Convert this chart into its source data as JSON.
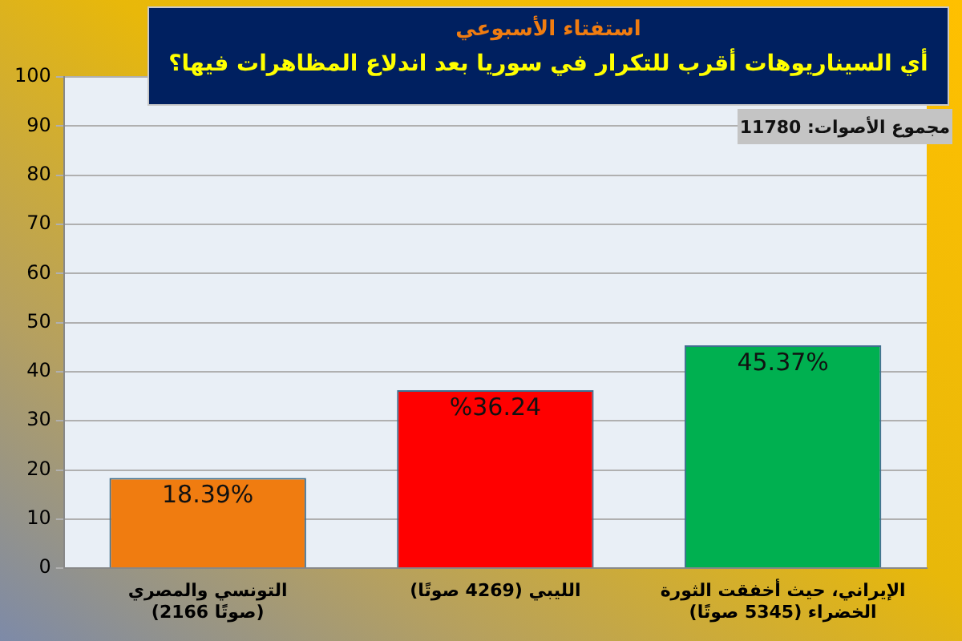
{
  "chart_data": {
    "type": "bar",
    "title": "استفتاء الأسبوعي",
    "subtitle": "أي السيناريوهات أقرب للتكرار في سوريا بعد اندلاع المظاهرات فيها؟",
    "annotations": [
      "مجموع الأصوات: 11780"
    ],
    "categories": [
      "التونسي والمصري (2166 صوتًا)",
      "الليبي (4269 صوتًا)",
      "الإيراني، حيث أخفقت الثورة الخضراء (5345 صوتًا)"
    ],
    "values": [
      18.39,
      36.24,
      45.37
    ],
    "colors": [
      "#f07c10",
      "#ff0000",
      "#00b050"
    ],
    "value_labels": [
      "18.39%",
      "%36.24",
      "45.37%"
    ],
    "ylim": [
      0,
      100
    ],
    "yticks": [
      0,
      10,
      20,
      30,
      40,
      50,
      60,
      70,
      80,
      90,
      100
    ],
    "grid": "y"
  }
}
